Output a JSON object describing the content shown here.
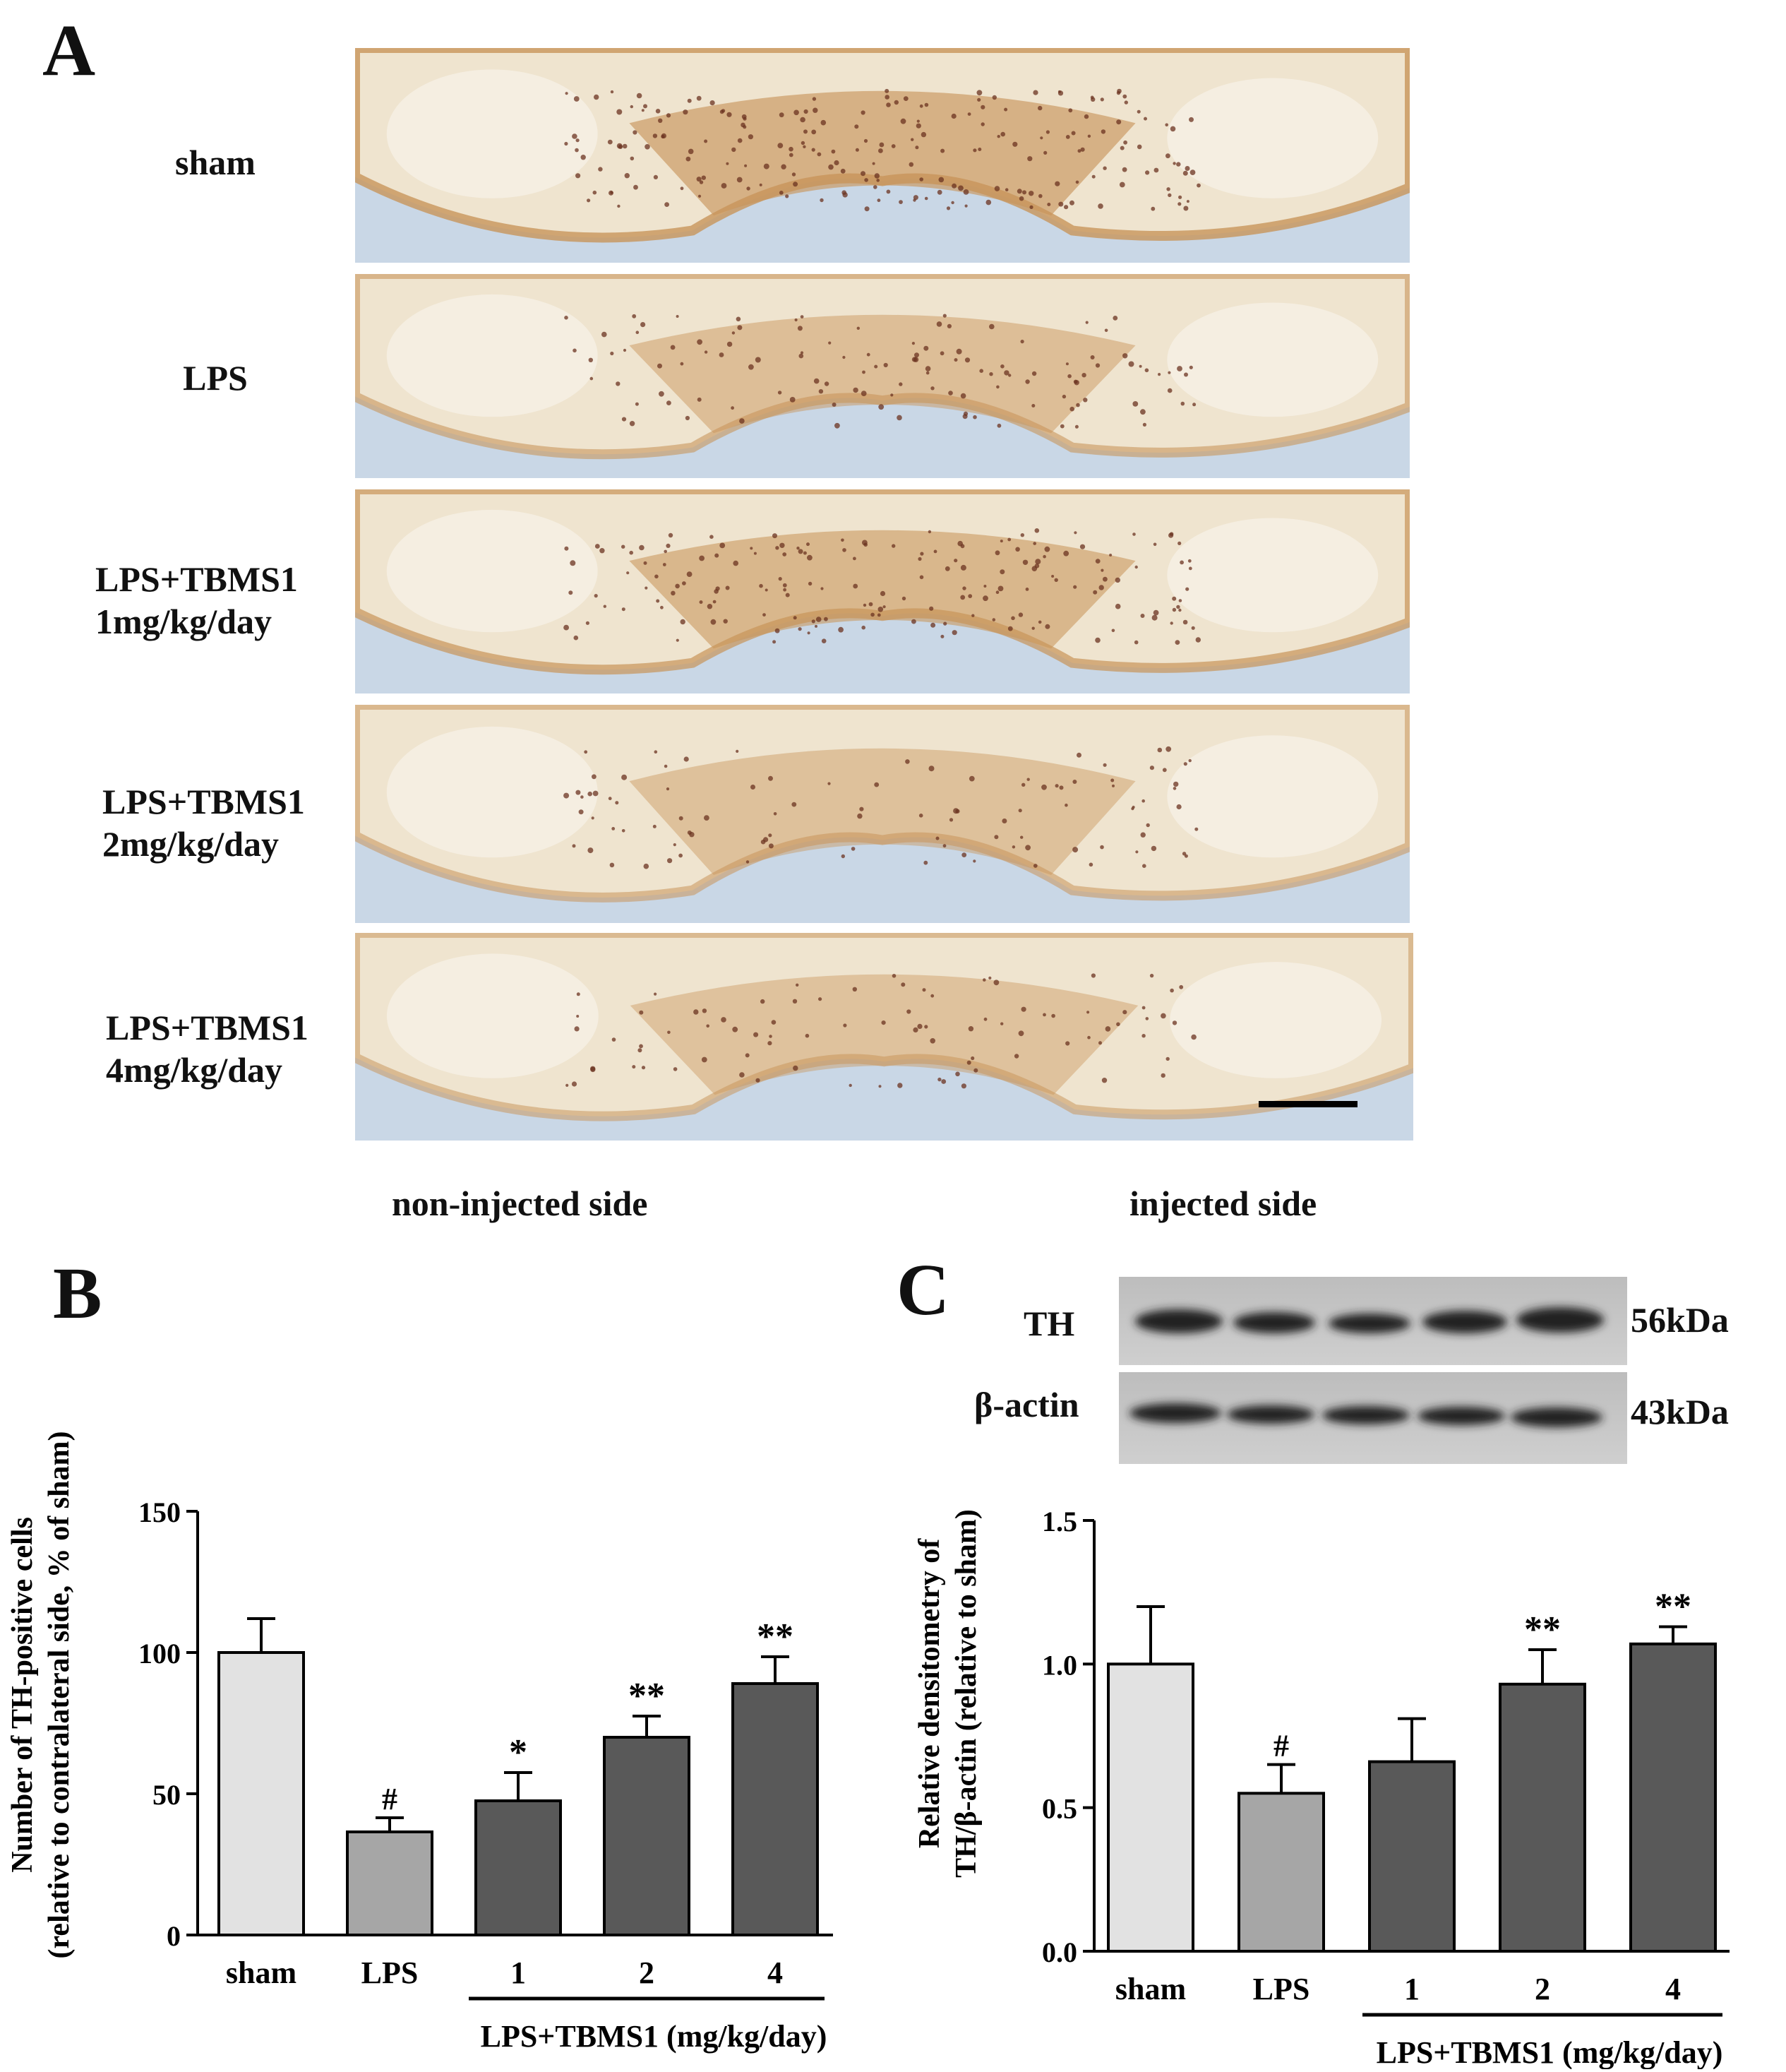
{
  "panel_a": {
    "letter": "A",
    "rows": [
      {
        "line1": "sham",
        "line2": ""
      },
      {
        "line1": "LPS",
        "line2": ""
      },
      {
        "line1": "LPS+TBMS1",
        "line2": "1mg/kg/day"
      },
      {
        "line1": "LPS+TBMS1",
        "line2": "2mg/kg/day"
      },
      {
        "line1": "LPS+TBMS1",
        "line2": "4mg/kg/day"
      }
    ],
    "left_side_label": "non-injected side",
    "right_side_label": "injected side"
  },
  "panel_b": {
    "letter": "B"
  },
  "panel_c": {
    "letter": "C",
    "blot_rows": [
      {
        "label": "TH",
        "size": "56kDa"
      },
      {
        "label": "β-actin",
        "size": "43kDa"
      }
    ]
  },
  "colors": {
    "sham_bar": "#e2e2e2",
    "lps_bar": "#a6a6a6",
    "tbms1_bar": "#595959",
    "stain_brown": "#c8955a",
    "slide_blue": "#c9d7e6"
  },
  "chart_data": [
    {
      "id": "B",
      "type": "bar",
      "categories": [
        "sham",
        "LPS",
        "1",
        "2",
        "4"
      ],
      "values": [
        100,
        36.5,
        47.5,
        70,
        89
      ],
      "errors": [
        12,
        5,
        10,
        7.5,
        9.5
      ],
      "markers": [
        "",
        "#",
        "*",
        "**",
        "**"
      ],
      "bar_colors": [
        "#e2e2e2",
        "#a6a6a6",
        "#595959",
        "#595959",
        "#595959"
      ],
      "ylabel_line1": "Number of TH-positive cells",
      "ylabel_line2": "(relative to contralateral side, % of sham)",
      "group_label": "LPS+TBMS1 (mg/kg/day)",
      "ylim": [
        0,
        150
      ],
      "yticks": [
        0,
        50,
        100,
        150
      ],
      "ytick_labels": [
        "0",
        "50",
        "100",
        "150"
      ]
    },
    {
      "id": "C",
      "type": "bar",
      "categories": [
        "sham",
        "LPS",
        "1",
        "2",
        "4"
      ],
      "values": [
        1.0,
        0.55,
        0.66,
        0.93,
        1.07
      ],
      "errors": [
        0.2,
        0.1,
        0.15,
        0.12,
        0.06
      ],
      "markers": [
        "",
        "#",
        "",
        "**",
        "**"
      ],
      "bar_colors": [
        "#e2e2e2",
        "#a6a6a6",
        "#595959",
        "#595959",
        "#595959"
      ],
      "ylabel_line1": "Relative densitometry of",
      "ylabel_line2": "TH/β-actin (relative to sham)",
      "group_label": "LPS+TBMS1 (mg/kg/day)",
      "ylim": [
        0,
        1.5
      ],
      "yticks": [
        0,
        0.5,
        1.0,
        1.5
      ],
      "ytick_labels": [
        "0.0",
        "0.5",
        "1.0",
        "1.5"
      ]
    }
  ]
}
